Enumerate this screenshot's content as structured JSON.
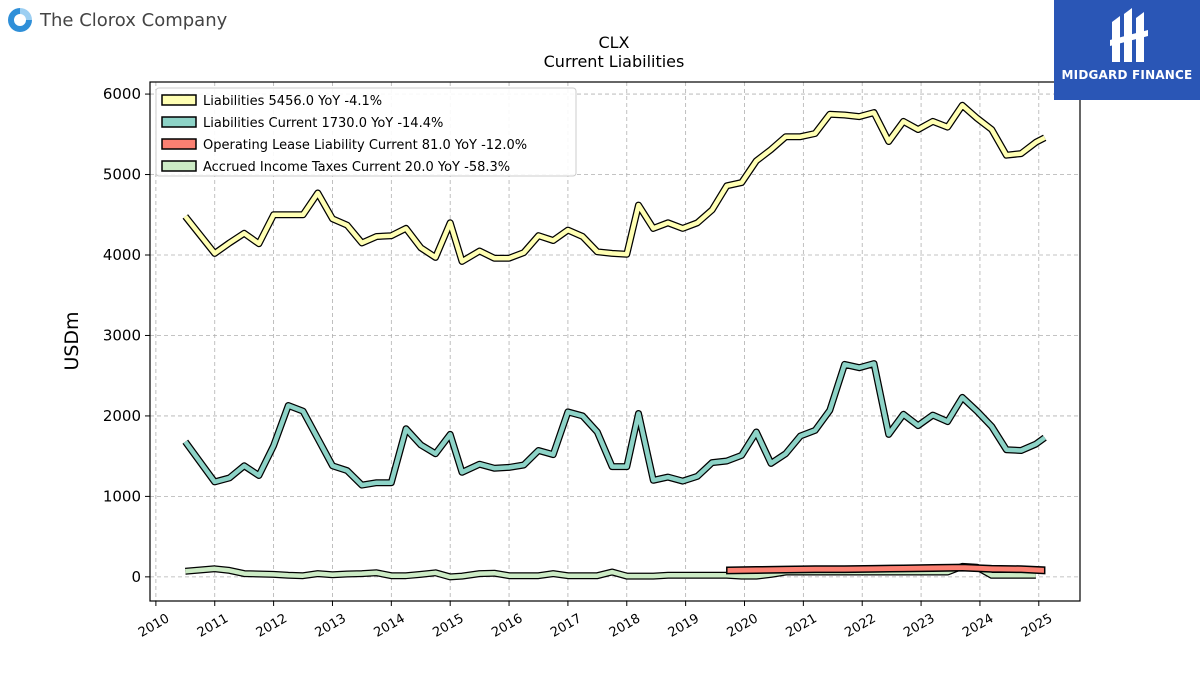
{
  "header": {
    "company": "The Clorox Company",
    "brand": "MIDGARD FINANCE"
  },
  "colors": {
    "liabilities": "#ffffb3",
    "current": "#8dd3c7",
    "lease": "#fb8072",
    "taxes": "#ccebc5",
    "brand_bg": "#2a56b6"
  },
  "chart_data": {
    "type": "line",
    "title": "CLX",
    "subtitle": "Current  Liabilities",
    "ylabel": "USDm",
    "xlabel": "",
    "xlim": [
      2009.9,
      2025.7
    ],
    "ylim": [
      -300,
      6150
    ],
    "yticks": [
      0,
      1000,
      2000,
      3000,
      4000,
      5000,
      6000
    ],
    "xticks": [
      2010,
      2011,
      2012,
      2013,
      2014,
      2015,
      2016,
      2017,
      2018,
      2019,
      2020,
      2021,
      2022,
      2023,
      2024,
      2025
    ],
    "grid": true,
    "legend_position": "top-left",
    "series": [
      {
        "name": "Liabilities  5456.0 YoY -4.1%",
        "color": "#ffffb3",
        "x": [
          2010.5,
          2011.0,
          2011.25,
          2011.5,
          2011.75,
          2012.0,
          2012.25,
          2012.5,
          2012.75,
          2013.0,
          2013.25,
          2013.5,
          2013.75,
          2014.0,
          2014.25,
          2014.5,
          2014.75,
          2015.0,
          2015.2,
          2015.5,
          2015.75,
          2016.0,
          2016.25,
          2016.5,
          2016.75,
          2017.0,
          2017.25,
          2017.5,
          2017.75,
          2018.0,
          2018.2,
          2018.45,
          2018.7,
          2018.95,
          2019.2,
          2019.45,
          2019.7,
          2019.95,
          2020.2,
          2020.45,
          2020.7,
          2020.95,
          2021.2,
          2021.45,
          2021.7,
          2021.95,
          2022.2,
          2022.45,
          2022.7,
          2022.95,
          2023.2,
          2023.45,
          2023.7,
          2023.95,
          2024.2,
          2024.45,
          2024.7,
          2024.95,
          2025.1
        ],
        "values": [
          4480,
          4020,
          4150,
          4270,
          4140,
          4500,
          4500,
          4500,
          4770,
          4450,
          4370,
          4150,
          4230,
          4240,
          4330,
          4090,
          3970,
          4400,
          3920,
          4050,
          3960,
          3960,
          4030,
          4240,
          4180,
          4310,
          4230,
          4040,
          4020,
          4010,
          4620,
          4330,
          4400,
          4330,
          4400,
          4560,
          4860,
          4900,
          5170,
          5310,
          5470,
          5470,
          5510,
          5750,
          5740,
          5720,
          5770,
          5410,
          5660,
          5560,
          5660,
          5590,
          5860,
          5700,
          5560,
          5240,
          5260,
          5400,
          5456
        ]
      },
      {
        "name": "Liabilities Current  1730.0 YoY -14.4%",
        "color": "#8dd3c7",
        "x": [
          2010.5,
          2011.0,
          2011.25,
          2011.5,
          2011.75,
          2012.0,
          2012.25,
          2012.5,
          2012.75,
          2013.0,
          2013.25,
          2013.5,
          2013.75,
          2014.0,
          2014.25,
          2014.5,
          2014.75,
          2015.0,
          2015.2,
          2015.5,
          2015.75,
          2016.0,
          2016.25,
          2016.5,
          2016.75,
          2017.0,
          2017.25,
          2017.5,
          2017.75,
          2018.0,
          2018.2,
          2018.45,
          2018.7,
          2018.95,
          2019.2,
          2019.45,
          2019.7,
          2019.95,
          2020.2,
          2020.45,
          2020.7,
          2020.95,
          2021.2,
          2021.45,
          2021.7,
          2021.95,
          2022.2,
          2022.45,
          2022.7,
          2022.95,
          2023.2,
          2023.45,
          2023.7,
          2023.95,
          2024.2,
          2024.45,
          2024.7,
          2024.95,
          2025.1
        ],
        "values": [
          1680,
          1180,
          1230,
          1380,
          1260,
          1630,
          2130,
          2060,
          1720,
          1380,
          1320,
          1140,
          1170,
          1170,
          1840,
          1640,
          1530,
          1770,
          1300,
          1400,
          1350,
          1360,
          1390,
          1570,
          1520,
          2050,
          2000,
          1800,
          1370,
          1370,
          2030,
          1200,
          1240,
          1190,
          1250,
          1420,
          1440,
          1510,
          1800,
          1410,
          1530,
          1750,
          1820,
          2070,
          2640,
          2600,
          2650,
          1770,
          2020,
          1880,
          2010,
          1930,
          2230,
          2060,
          1870,
          1580,
          1570,
          1650,
          1730
        ]
      },
      {
        "name": "Operating Lease Liability Current  81.0 YoY -12.0%",
        "color": "#fb8072",
        "x": [
          2019.7,
          2020.2,
          2020.7,
          2021.2,
          2021.7,
          2022.2,
          2022.7,
          2023.2,
          2023.7,
          2024.2,
          2024.7,
          2025.1
        ],
        "values": [
          80,
          85,
          90,
          95,
          95,
          100,
          105,
          110,
          115,
          100,
          95,
          81
        ]
      },
      {
        "name": "Accrued Income Taxes Current  20.0 YoY -58.3%",
        "color": "#ccebc5",
        "x": [
          2010.5,
          2011.0,
          2011.25,
          2011.5,
          2011.75,
          2012.0,
          2012.25,
          2012.5,
          2012.75,
          2013.0,
          2013.25,
          2013.5,
          2013.75,
          2014.0,
          2014.25,
          2014.5,
          2014.75,
          2015.0,
          2015.2,
          2015.5,
          2015.75,
          2016.0,
          2016.25,
          2016.5,
          2016.75,
          2017.0,
          2017.25,
          2017.5,
          2017.75,
          2018.0,
          2018.2,
          2018.45,
          2018.7,
          2018.95,
          2019.2,
          2019.45,
          2019.7,
          2019.95,
          2020.2,
          2020.45,
          2020.7,
          2020.95,
          2021.2,
          2021.45,
          2021.7,
          2021.95,
          2022.2,
          2022.45,
          2022.7,
          2022.95,
          2023.2,
          2023.45,
          2023.7,
          2023.95,
          2024.2,
          2024.45,
          2024.7,
          2024.95
        ],
        "values": [
          70,
          100,
          80,
          40,
          35,
          30,
          20,
          15,
          40,
          25,
          35,
          40,
          50,
          15,
          15,
          30,
          50,
          0,
          10,
          40,
          45,
          15,
          15,
          15,
          40,
          15,
          15,
          15,
          60,
          10,
          10,
          10,
          20,
          20,
          20,
          20,
          20,
          10,
          10,
          30,
          60,
          60,
          60,
          60,
          60,
          60,
          60,
          60,
          60,
          60,
          60,
          60,
          130,
          120,
          20,
          20,
          20,
          20
        ]
      }
    ]
  }
}
